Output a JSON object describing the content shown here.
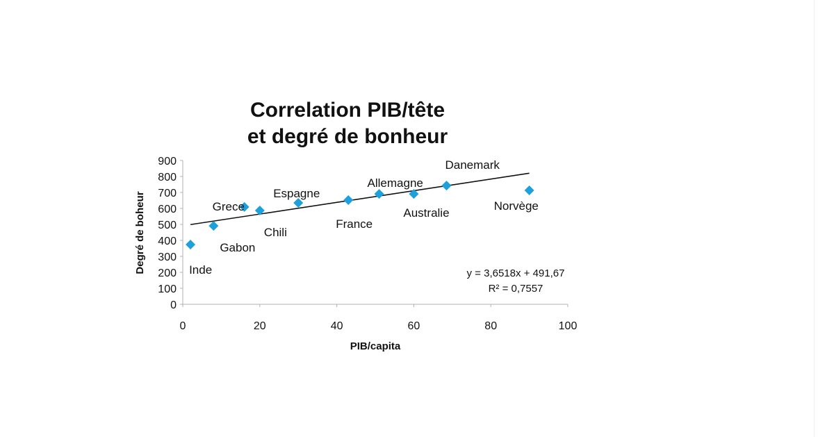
{
  "chart_data": {
    "type": "scatter",
    "title": "Correlation PIB/tête et degré de bonheur",
    "title_lines": [
      "Correlation PIB/tête",
      "et degré de bonheur"
    ],
    "xlabel": "PIB/capita",
    "ylabel": "Degré de boheur",
    "xlim": [
      0,
      100
    ],
    "ylim": [
      0,
      900
    ],
    "x_ticks": [
      0,
      20,
      40,
      60,
      80,
      100
    ],
    "y_ticks": [
      0,
      100,
      200,
      300,
      400,
      500,
      600,
      700,
      800,
      900
    ],
    "grid": false,
    "legend": null,
    "marker_color": "#1ea0dc",
    "points": [
      {
        "label": "Inde",
        "x": 2,
        "y": 374
      },
      {
        "label": "Gabon",
        "x": 8,
        "y": 491
      },
      {
        "label": "Grece",
        "x": 16,
        "y": 609
      },
      {
        "label": "Chili",
        "x": 20,
        "y": 587
      },
      {
        "label": "Espagne",
        "x": 30,
        "y": 635
      },
      {
        "label": "France",
        "x": 43,
        "y": 652
      },
      {
        "label": "Allemagne",
        "x": 51,
        "y": 691
      },
      {
        "label": "Australie",
        "x": 60,
        "y": 691
      },
      {
        "label": "Danemark",
        "x": 68.5,
        "y": 743
      },
      {
        "label": "Norvège",
        "x": 90,
        "y": 713
      }
    ],
    "trendline": {
      "type": "linear",
      "slope": 3.6518,
      "intercept": 491.67,
      "x_range": [
        2,
        90
      ],
      "equation_text": "y = 3,6518x + 491,67",
      "r2_text": "R² = 0,7557"
    }
  }
}
